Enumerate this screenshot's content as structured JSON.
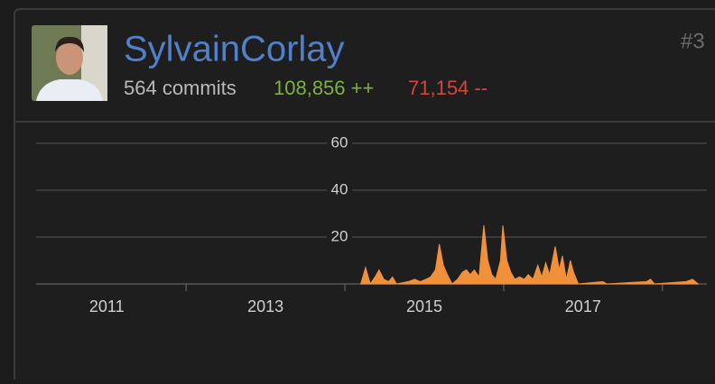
{
  "header": {
    "username": "SylvainCorlay",
    "commits": "564 commits",
    "additions": "108,856 ++",
    "deletions": "71,154 --",
    "rank": "#3"
  },
  "chart_data": {
    "type": "area",
    "color": "#f0913a",
    "grid": true,
    "x": [
      2014.2,
      2014.26,
      2014.32,
      2014.38,
      2014.43,
      2014.49,
      2014.55,
      2014.6,
      2014.65,
      2014.8,
      2014.88,
      2014.95,
      2015.02,
      2015.08,
      2015.14,
      2015.19,
      2015.24,
      2015.29,
      2015.35,
      2015.42,
      2015.48,
      2015.53,
      2015.58,
      2015.63,
      2015.69,
      2015.75,
      2015.8,
      2015.85,
      2015.9,
      2015.96,
      2015.99,
      2016.04,
      2016.09,
      2016.14,
      2016.2,
      2016.26,
      2016.31,
      2016.37,
      2016.43,
      2016.48,
      2016.53,
      2016.58,
      2016.65,
      2016.7,
      2016.74,
      2016.79,
      2016.84,
      2016.88,
      2016.94,
      2017.25,
      2017.3,
      2017.8,
      2017.85,
      2017.9,
      2018.3,
      2018.38,
      2018.45
    ],
    "values": [
      0,
      7,
      0,
      3,
      6,
      2,
      1,
      3,
      0,
      1,
      2,
      1,
      2,
      3,
      6,
      17,
      8,
      4,
      0,
      2,
      5,
      6,
      4,
      6,
      3,
      25,
      10,
      4,
      2,
      10,
      25,
      10,
      5,
      2,
      3,
      2,
      4,
      2,
      8,
      3,
      9,
      4,
      16,
      6,
      12,
      2,
      10,
      5,
      0,
      1,
      0,
      1,
      2,
      0,
      1,
      2,
      0
    ],
    "xlim": [
      2010.11,
      2018.56
    ],
    "xticks": [
      2011,
      2013,
      2015,
      2017
    ],
    "xminor_ticks": [
      2012,
      2014,
      2016,
      2018
    ],
    "ylim": [
      0,
      60
    ],
    "yticks": [
      20,
      40,
      60
    ]
  }
}
